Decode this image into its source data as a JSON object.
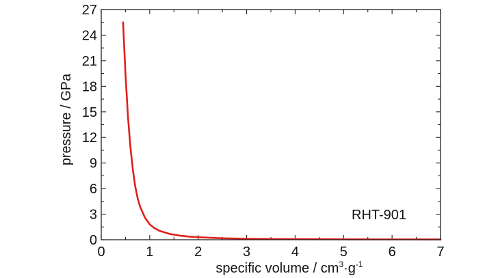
{
  "chart_data": {
    "type": "line",
    "title": "",
    "xlabel": {
      "text": "specific volume / cm",
      "sup1": "3",
      "mid": "·g",
      "sup2": "-1"
    },
    "ylabel": "pressure / GPa",
    "xlim": [
      0,
      7
    ],
    "ylim": [
      0,
      27
    ],
    "xticks": [
      "0",
      "1",
      "2",
      "3",
      "4",
      "5",
      "6",
      "7"
    ],
    "yticks": [
      "0",
      "3",
      "6",
      "9",
      "12",
      "15",
      "18",
      "21",
      "24",
      "27"
    ],
    "grid": false,
    "legend": "none",
    "annotation": "RHT-901",
    "series": [
      {
        "color": "#e0201b",
        "x": [
          0.45,
          0.5,
          0.55,
          0.6,
          0.65,
          0.7,
          0.75,
          0.8,
          0.9,
          1.0,
          1.1,
          1.2,
          1.4,
          1.6,
          1.8,
          2.0,
          2.5,
          3.0,
          3.5,
          4.0,
          5.0,
          6.0,
          7.0
        ],
        "y": [
          25.5,
          19.5,
          14.5,
          11.0,
          8.3,
          6.3,
          4.9,
          3.9,
          2.6,
          1.8,
          1.35,
          1.05,
          0.7,
          0.5,
          0.38,
          0.3,
          0.18,
          0.12,
          0.09,
          0.07,
          0.05,
          0.04,
          0.03
        ]
      }
    ]
  }
}
